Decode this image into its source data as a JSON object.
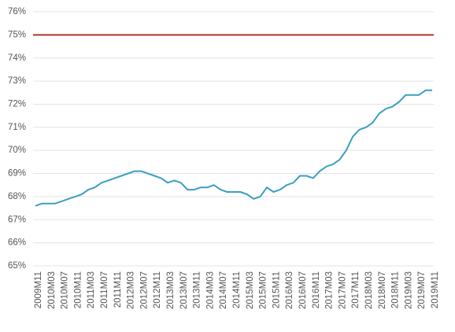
{
  "chart_data": {
    "type": "line",
    "categories": [
      "2009M11",
      null,
      "2010M03",
      null,
      "2010M07",
      null,
      "2010M11",
      null,
      "2011M03",
      null,
      "2011M07",
      null,
      "2011M11",
      null,
      "2012M03",
      null,
      "2012M07",
      null,
      "2012M11",
      null,
      "2013M03",
      null,
      "2013M07",
      null,
      "2013M11",
      null,
      "2014M03",
      null,
      "2014M07",
      null,
      "2014M11",
      null,
      "2015M03",
      null,
      "2015M07",
      null,
      "2015M11",
      null,
      "2016M03",
      null,
      "2016M07",
      null,
      "2016M11",
      null,
      "2017M03",
      null,
      "2017M07",
      null,
      "2017M11",
      null,
      "2018M03",
      null,
      "2018M07",
      null,
      "2018M11",
      null,
      "2019M03",
      null,
      "2019M07",
      null,
      "2019M11"
    ],
    "values": [
      67.6,
      67.7,
      67.7,
      67.7,
      67.8,
      67.9,
      68.0,
      68.1,
      68.3,
      68.4,
      68.6,
      68.7,
      68.8,
      68.9,
      69.0,
      69.1,
      69.1,
      69.0,
      68.9,
      68.8,
      68.6,
      68.7,
      68.6,
      68.3,
      68.3,
      68.4,
      68.4,
      68.5,
      68.3,
      68.2,
      68.2,
      68.2,
      68.1,
      67.9,
      68.0,
      68.4,
      68.2,
      68.3,
      68.5,
      68.6,
      68.9,
      68.9,
      68.8,
      69.1,
      69.3,
      69.4,
      69.6,
      70.0,
      70.6,
      70.9,
      71.0,
      71.2,
      71.6,
      71.8,
      71.9,
      72.1,
      72.4,
      72.4,
      72.4,
      72.6,
      72.6
    ],
    "color": "#3a9fc0",
    "reference_line": {
      "value": 75,
      "color": "#b5332a"
    },
    "ylim": [
      65,
      76
    ],
    "yticks": [
      {
        "value": 65,
        "label": "65%"
      },
      {
        "value": 66,
        "label": "66%"
      },
      {
        "value": 67,
        "label": "67%"
      },
      {
        "value": 68,
        "label": "68%"
      },
      {
        "value": 69,
        "label": "69%"
      },
      {
        "value": 70,
        "label": "70%"
      },
      {
        "value": 71,
        "label": "71%"
      },
      {
        "value": 72,
        "label": "72%"
      },
      {
        "value": 73,
        "label": "73%"
      },
      {
        "value": 74,
        "label": "74%"
      },
      {
        "value": 75,
        "label": "75%"
      },
      {
        "value": 76,
        "label": "76%"
      }
    ],
    "grid": true
  }
}
